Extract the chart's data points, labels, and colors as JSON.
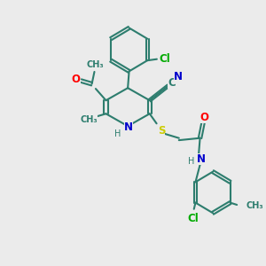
{
  "background_color": "#EBEBEB",
  "bond_color": "#2D7D6E",
  "O_color": "#FF0000",
  "N_color": "#0000CC",
  "S_color": "#CCCC00",
  "Cl_color": "#00AA00",
  "C_color": "#2D7D6E",
  "H_color": "#2D7D6E",
  "figsize": [
    3.0,
    3.0
  ],
  "dpi": 100,
  "xlim": [
    0,
    10
  ],
  "ylim": [
    0,
    10
  ]
}
